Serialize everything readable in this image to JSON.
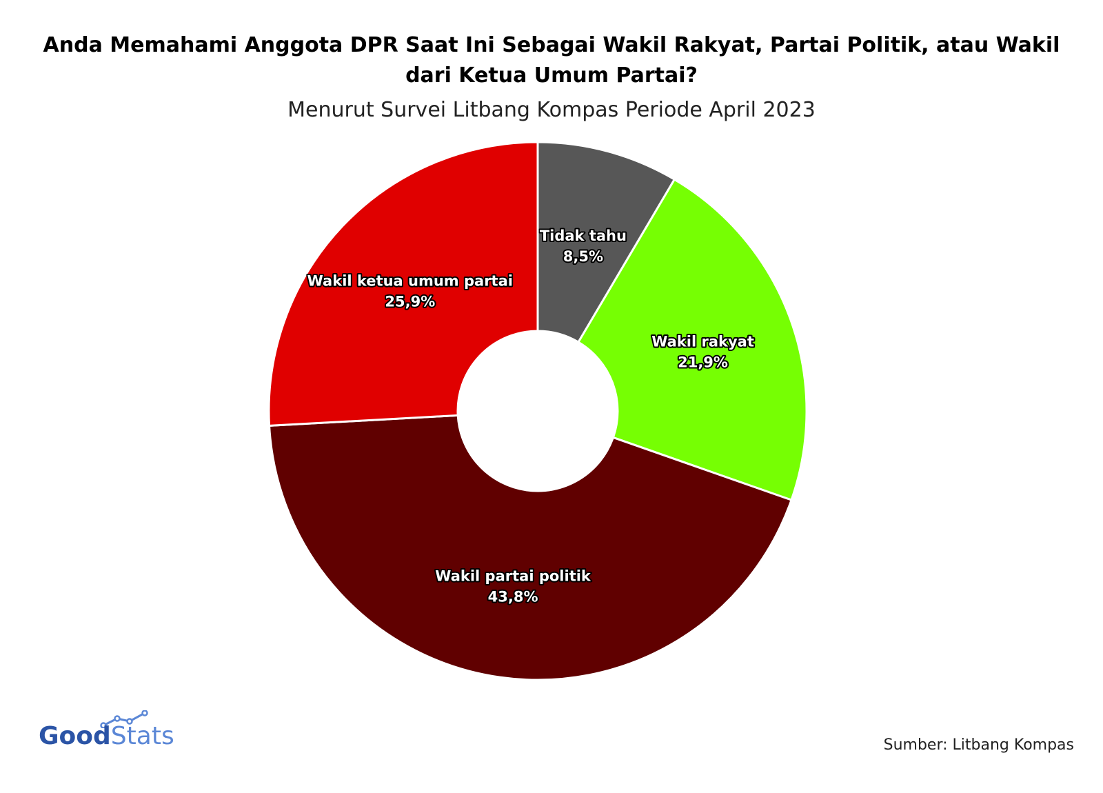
{
  "header": {
    "title_line1": "Anda Memahami Anggota DPR Saat Ini Sebagai Wakil Rakyat, Partai Politik, atau Wakil",
    "title_line2": "dari Ketua Umum Partai?",
    "subtitle": "Menurut Survei Litbang Kompas Periode April 2023"
  },
  "chart_data": {
    "type": "pie",
    "variant": "donut",
    "title": "Anda Memahami Anggota DPR Saat Ini Sebagai Wakil Rakyat, Partai Politik, atau Wakil dari Ketua Umum Partai?",
    "subtitle": "Menurut Survei Litbang Kompas Periode April 2023",
    "legend": "none",
    "slices": [
      {
        "label": "Tidak tahu",
        "value": 8.5,
        "value_label": "8,5%",
        "color": "#575757"
      },
      {
        "label": "Wakil rakyat",
        "value": 21.9,
        "value_label": "21,9%",
        "color": "#76ff03"
      },
      {
        "label": "Wakil partai politik",
        "value": 43.8,
        "value_label": "43,8%",
        "color": "#600000"
      },
      {
        "label": "Wakil ketua umum partai",
        "value": 25.9,
        "value_label": "25,9%",
        "color": "#e00000"
      }
    ]
  },
  "footer": {
    "logo_good": "Good",
    "logo_stats": "Stats",
    "source": "Sumber: Litbang Kompas"
  }
}
